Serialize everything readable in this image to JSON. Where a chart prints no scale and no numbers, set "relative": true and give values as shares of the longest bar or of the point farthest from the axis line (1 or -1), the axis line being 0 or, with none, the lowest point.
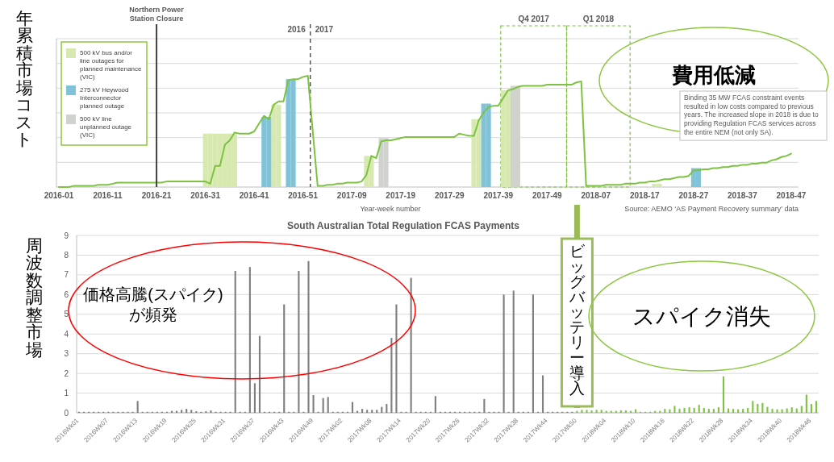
{
  "chart_data": [
    {
      "type": "line",
      "relative": true,
      "ylabel": "年累積市場コスト",
      "xlabel": "Year-week number",
      "categories": [
        "2016-01",
        null,
        null,
        null,
        null,
        null,
        null,
        null,
        null,
        null,
        "2016-11",
        null,
        null,
        null,
        null,
        null,
        null,
        null,
        null,
        null,
        "2016-21",
        null,
        null,
        null,
        null,
        null,
        null,
        null,
        null,
        null,
        "2016-31",
        null,
        null,
        null,
        null,
        null,
        null,
        null,
        null,
        null,
        "2016-41",
        null,
        null,
        null,
        null,
        null,
        null,
        null,
        null,
        null,
        "2016-51",
        null,
        null,
        null,
        null,
        null,
        null,
        null,
        null,
        null,
        "2017-09",
        null,
        null,
        null,
        null,
        null,
        null,
        null,
        null,
        null,
        "2017-19",
        null,
        null,
        null,
        null,
        null,
        null,
        null,
        null,
        null,
        "2017-29",
        null,
        null,
        null,
        null,
        null,
        null,
        null,
        null,
        null,
        "2017-39",
        null,
        null,
        null,
        null,
        null,
        null,
        null,
        null,
        null,
        "2017-49",
        null,
        null,
        null,
        null,
        null,
        null,
        null,
        null,
        null,
        "2018-07",
        null,
        null,
        null,
        null,
        null,
        null,
        null,
        null,
        null,
        "2018-17",
        null,
        null,
        null,
        null,
        null,
        null,
        null,
        null,
        null,
        "2018-27",
        null,
        null,
        null,
        null,
        null,
        null,
        null,
        null,
        null,
        "2018-37",
        null,
        null,
        null,
        null,
        null,
        null,
        null,
        null,
        null,
        "2018-47",
        null
      ],
      "grid": "y",
      "legend": "top left",
      "series": [
        {
          "name": "500 kV bus and/or line outages for planned maintenance (VIC)",
          "type": "bar",
          "color": "#d7e9b0",
          "values": [
            null,
            null,
            null,
            null,
            null,
            null,
            null,
            null,
            null,
            null,
            null,
            null,
            null,
            null,
            null,
            null,
            null,
            null,
            null,
            null,
            null,
            null,
            null,
            null,
            null,
            null,
            null,
            null,
            null,
            null,
            0.48,
            0.48,
            0.48,
            0.48,
            0.48,
            0.48,
            0.48,
            null,
            null,
            null,
            null,
            null,
            null,
            null,
            0.74,
            0.74,
            null,
            null,
            null,
            null,
            null,
            null,
            null,
            null,
            null,
            null,
            null,
            null,
            null,
            null,
            null,
            null,
            null,
            0.28,
            0.28,
            null,
            null,
            null,
            null,
            null,
            null,
            null,
            null,
            null,
            null,
            null,
            null,
            null,
            null,
            null,
            null,
            null,
            null,
            null,
            null,
            0.61,
            0.61,
            null,
            null,
            null,
            null,
            0.87,
            0.87,
            null,
            null,
            null,
            null,
            null,
            null,
            null,
            null,
            null,
            null,
            null,
            null,
            null,
            null,
            null,
            null,
            null,
            null,
            null,
            null,
            null,
            null,
            null,
            null,
            null,
            null,
            null,
            null,
            null,
            0.03,
            0.03,
            null,
            null,
            null,
            null,
            null,
            null,
            null,
            null,
            null,
            null,
            null,
            null,
            null,
            null,
            null,
            null,
            null,
            null,
            null,
            null,
            null,
            null,
            null,
            null,
            null,
            null,
            null,
            null
          ]
        },
        {
          "name": "275 kV Heywood Interconnector planned outage",
          "type": "bar",
          "color": "#7fc3d8",
          "values": [
            null,
            null,
            null,
            null,
            null,
            null,
            null,
            null,
            null,
            null,
            null,
            null,
            null,
            null,
            null,
            null,
            null,
            null,
            null,
            null,
            null,
            null,
            null,
            null,
            null,
            null,
            null,
            null,
            null,
            null,
            null,
            null,
            null,
            null,
            null,
            null,
            null,
            null,
            null,
            null,
            null,
            null,
            0.63,
            0.63,
            null,
            null,
            null,
            0.97,
            0.97,
            null,
            null,
            null,
            null,
            null,
            null,
            null,
            null,
            null,
            null,
            null,
            null,
            null,
            null,
            null,
            null,
            null,
            null,
            null,
            null,
            null,
            null,
            null,
            null,
            null,
            null,
            null,
            null,
            null,
            null,
            null,
            null,
            null,
            null,
            null,
            null,
            null,
            null,
            0.75,
            0.75,
            null,
            null,
            null,
            null,
            null,
            null,
            null,
            null,
            null,
            null,
            null,
            null,
            null,
            null,
            null,
            null,
            null,
            null,
            null,
            null,
            null,
            null,
            null,
            null,
            null,
            null,
            null,
            null,
            null,
            null,
            null,
            null,
            null,
            null,
            null,
            null,
            null,
            null,
            null,
            null,
            null,
            0.17,
            0.17,
            null,
            null,
            null,
            null,
            null,
            null,
            null,
            null,
            null,
            null,
            null,
            null,
            null,
            null,
            null,
            null,
            null,
            null,
            null,
            null
          ]
        },
        {
          "name": "500 kV line unplanned outage (VIC)",
          "type": "bar",
          "color": "#d0d2ce",
          "values": [
            null,
            null,
            null,
            null,
            null,
            null,
            null,
            null,
            null,
            null,
            null,
            null,
            null,
            null,
            null,
            null,
            null,
            null,
            null,
            null,
            null,
            null,
            null,
            null,
            null,
            null,
            null,
            null,
            null,
            null,
            null,
            null,
            null,
            null,
            null,
            null,
            null,
            null,
            null,
            null,
            null,
            null,
            null,
            null,
            null,
            null,
            null,
            null,
            null,
            null,
            null,
            null,
            null,
            null,
            null,
            null,
            null,
            null,
            null,
            null,
            null,
            null,
            null,
            null,
            null,
            null,
            0.44,
            0.44,
            null,
            null,
            null,
            null,
            null,
            null,
            null,
            null,
            null,
            null,
            null,
            null,
            null,
            null,
            null,
            null,
            null,
            null,
            null,
            null,
            null,
            null,
            null,
            null,
            null,
            0.91,
            0.91,
            null,
            null,
            null,
            null,
            null,
            null,
            null,
            null,
            null,
            null,
            null,
            null,
            null,
            null,
            null,
            null,
            null,
            null,
            null,
            null,
            null,
            null,
            null,
            null,
            null,
            null,
            null,
            null,
            null,
            null,
            null,
            null,
            null,
            null,
            null,
            null,
            null,
            null,
            null,
            null,
            null,
            null,
            null,
            null,
            null,
            null,
            null,
            null,
            null,
            null,
            null,
            null,
            null,
            null,
            null,
            null,
            null
          ]
        },
        {
          "type": "line",
          "color": "#7dc241",
          "values": [
            0,
            0,
            0,
            0.01,
            0.01,
            0.01,
            0.01,
            0.01,
            0.02,
            0.02,
            0.02,
            0.03,
            0.04,
            0.04,
            0.04,
            0.04,
            0.04,
            0.04,
            0.04,
            0.04,
            0.04,
            0.04,
            0.05,
            0.05,
            0.05,
            0.05,
            0.05,
            0.05,
            0.05,
            0.05,
            0.05,
            0.03,
            0.19,
            0.19,
            0.38,
            0.42,
            0.49,
            0.48,
            0.48,
            0.48,
            0.5,
            0.57,
            0.64,
            0.61,
            0.74,
            0.77,
            0.77,
            0.96,
            0.97,
            0.97,
            0.99,
            1.0,
            0.5,
            0.01,
            0.01,
            0.02,
            0.02,
            0.03,
            0.03,
            0.04,
            0.04,
            0.04,
            0.05,
            0.11,
            0.28,
            0.26,
            0.41,
            0.42,
            0.42,
            0.43,
            0.44,
            0.45,
            0.45,
            0.45,
            0.45,
            0.45,
            0.45,
            0.45,
            0.45,
            0.45,
            0.45,
            0.45,
            0.48,
            0.47,
            0.46,
            0.46,
            0.6,
            0.67,
            0.72,
            0.73,
            0.73,
            0.8,
            0.87,
            0.88,
            0.9,
            0.91,
            0.91,
            0.91,
            0.91,
            0.91,
            0.92,
            0.92,
            0.92,
            0.92,
            0.92,
            0.92,
            0.94,
            0.95,
            0.01,
            0.01,
            0.01,
            0.01,
            0.02,
            0.02,
            0.02,
            0.02,
            0.03,
            0.03,
            0.03,
            0.04,
            0.04,
            0.05,
            0.05,
            0.06,
            0.07,
            0.07,
            0.08,
            0.09,
            0.09,
            0.1,
            0.15,
            0.15,
            0.16,
            0.16,
            0.17,
            0.17,
            0.18,
            0.18,
            0.19,
            0.19,
            0.2,
            0.2,
            0.21,
            0.21,
            0.22,
            0.22,
            0.24,
            0.25,
            0.27,
            0.28,
            0.3,
            null
          ]
        }
      ],
      "ref_lines": [
        {
          "axis": "x",
          "value": "2016-21",
          "label": "Northern Power Station Closure",
          "color": "#404040"
        }
      ],
      "annotations": [
        "費用低減",
        "Binding 35 MW FCAS constraint events resulted in low costs compared to previous years. The increased slope in 2018 is due to providing Regulation FCAS services across the entire NEM (not only SA).",
        "Source: AEMO ‘AS Payment Recovery summary’ data",
        "2016",
        "2017",
        "Q4 2017",
        "Q1 2018"
      ]
    },
    {
      "type": "bar",
      "title": "South Australian Total Regulation FCAS Payments",
      "ylabel": "周波数調整市場",
      "ylim": [
        0,
        9
      ],
      "yticks": [
        0,
        1,
        2,
        3,
        4,
        5,
        6,
        7,
        8,
        9
      ],
      "grid": "y",
      "categories": [
        "2016Wk01",
        null,
        null,
        null,
        null,
        null,
        "2016Wk07",
        null,
        null,
        null,
        null,
        null,
        "2016Wk13",
        null,
        null,
        null,
        null,
        null,
        "2016Wk19",
        null,
        null,
        null,
        null,
        null,
        "2016Wk25",
        null,
        null,
        null,
        null,
        null,
        "2016Wk31",
        null,
        null,
        null,
        null,
        null,
        "2016Wk37",
        null,
        null,
        null,
        null,
        null,
        "2016Wk43",
        null,
        null,
        null,
        null,
        null,
        "2016Wk49",
        null,
        null,
        null,
        null,
        null,
        "2017Wk02",
        null,
        null,
        null,
        null,
        null,
        "2017Wk08",
        null,
        null,
        null,
        null,
        null,
        "2017Wk14",
        null,
        null,
        null,
        null,
        null,
        "2017Wk20",
        null,
        null,
        null,
        null,
        null,
        "2017Wk26",
        null,
        null,
        null,
        null,
        null,
        "2017Wk32",
        null,
        null,
        null,
        null,
        null,
        "2017Wk38",
        null,
        null,
        null,
        null,
        null,
        "2017Wk44",
        null,
        null,
        null,
        null,
        null,
        "2017Wk50",
        null,
        null,
        null,
        null,
        null,
        "2018Wk04",
        null,
        null,
        null,
        null,
        null,
        "2018Wk10",
        null,
        null,
        null,
        null,
        null,
        "2018Wk16",
        null,
        null,
        null,
        null,
        null,
        "2018Wk22",
        null,
        null,
        null,
        null,
        null,
        "2018Wk28",
        null,
        null,
        null,
        null,
        null,
        "2018Wk34",
        null,
        null,
        null,
        null,
        null,
        "2018Wk40",
        null,
        null,
        null,
        null,
        null,
        "2018Wk46",
        null
      ],
      "series": [
        {
          "color": "#7f7f7f",
          "values": [
            0.05,
            0.05,
            0.05,
            0.05,
            0.05,
            0.05,
            0.05,
            0.05,
            0.05,
            0.05,
            0.05,
            0.05,
            0.6,
            0.05,
            0.05,
            0.05,
            0.05,
            0.05,
            0.05,
            0.1,
            0.1,
            0.15,
            0.2,
            0.15,
            0.08,
            0.05,
            0.08,
            0.12,
            0.05,
            0.05,
            0.05,
            0.05,
            7.2,
            0.05,
            0.05,
            7.4,
            1.5,
            3.9,
            0.05,
            0.05,
            0.05,
            0.05,
            5.5,
            0.05,
            0.05,
            7.2,
            0.05,
            7.7,
            0.9,
            0.05,
            0.75,
            0.8,
            0.05,
            0.05,
            0.05,
            0.05,
            0.55,
            0.1,
            0.2,
            0.15,
            0.15,
            0.15,
            0.3,
            0.45,
            3.8,
            5.5,
            0.05,
            0.05,
            6.85,
            0.05,
            0.05,
            0.05,
            0.05,
            0.85,
            0.05,
            0.05,
            0.05,
            0.05,
            0.05,
            0.05,
            0.05,
            0.05,
            0.05,
            0.7,
            0.05,
            0.05,
            0.05,
            6.0,
            0.05,
            6.2,
            0.05,
            0.05,
            0.05,
            6.0,
            0.05,
            1.9,
            0.05,
            0.05,
            0.05,
            0.05,
            0.05,
            0.05,
            null,
            null,
            null,
            null,
            null,
            null,
            null,
            null,
            null,
            null,
            null,
            null,
            null,
            null,
            null,
            null,
            null,
            null,
            null,
            null,
            null,
            null,
            null,
            null,
            null,
            null,
            null,
            null,
            null,
            null,
            null,
            null,
            null,
            null,
            null,
            null,
            null,
            null,
            null,
            null,
            null,
            null,
            null,
            null,
            null,
            null,
            null,
            null,
            null,
            null
          ]
        },
        {
          "color": "#7dc241",
          "values": [
            null,
            null,
            null,
            null,
            null,
            null,
            null,
            null,
            null,
            null,
            null,
            null,
            null,
            null,
            null,
            null,
            null,
            null,
            null,
            null,
            null,
            null,
            null,
            null,
            null,
            null,
            null,
            null,
            null,
            null,
            null,
            null,
            null,
            null,
            null,
            null,
            null,
            null,
            null,
            null,
            null,
            null,
            null,
            null,
            null,
            null,
            null,
            null,
            null,
            null,
            null,
            null,
            null,
            null,
            null,
            null,
            null,
            null,
            null,
            null,
            null,
            null,
            null,
            null,
            null,
            null,
            null,
            null,
            null,
            null,
            null,
            null,
            null,
            null,
            null,
            null,
            null,
            null,
            null,
            null,
            null,
            null,
            null,
            null,
            null,
            null,
            null,
            null,
            null,
            null,
            null,
            null,
            null,
            null,
            null,
            null,
            null,
            null,
            null,
            null,
            null,
            null,
            0.1,
            0.15,
            0.15,
            0.12,
            0.15,
            0.15,
            0.1,
            0.1,
            0.1,
            0.12,
            0.12,
            0.1,
            0.18,
            0.05,
            0.05,
            0.05,
            0.1,
            0.1,
            0.2,
            0.18,
            0.35,
            0.2,
            0.25,
            0.28,
            0.25,
            0.4,
            0.25,
            0.2,
            0.2,
            0.28,
            1.85,
            0.22,
            0.2,
            0.18,
            0.2,
            0.25,
            0.6,
            0.45,
            0.5,
            0.3,
            0.2,
            0.18,
            0.18,
            0.22,
            0.28,
            0.22,
            0.35,
            0.92,
            0.45,
            0.6
          ]
        }
      ],
      "ref_lines": [
        {
          "axis": "x",
          "value": "2017Wk50",
          "label": "ビッグバッテリー導入",
          "color": "#9bbb59"
        }
      ],
      "annotations": [
        "価格高騰(スパイク)が頻発",
        "スパイク消失"
      ]
    }
  ]
}
